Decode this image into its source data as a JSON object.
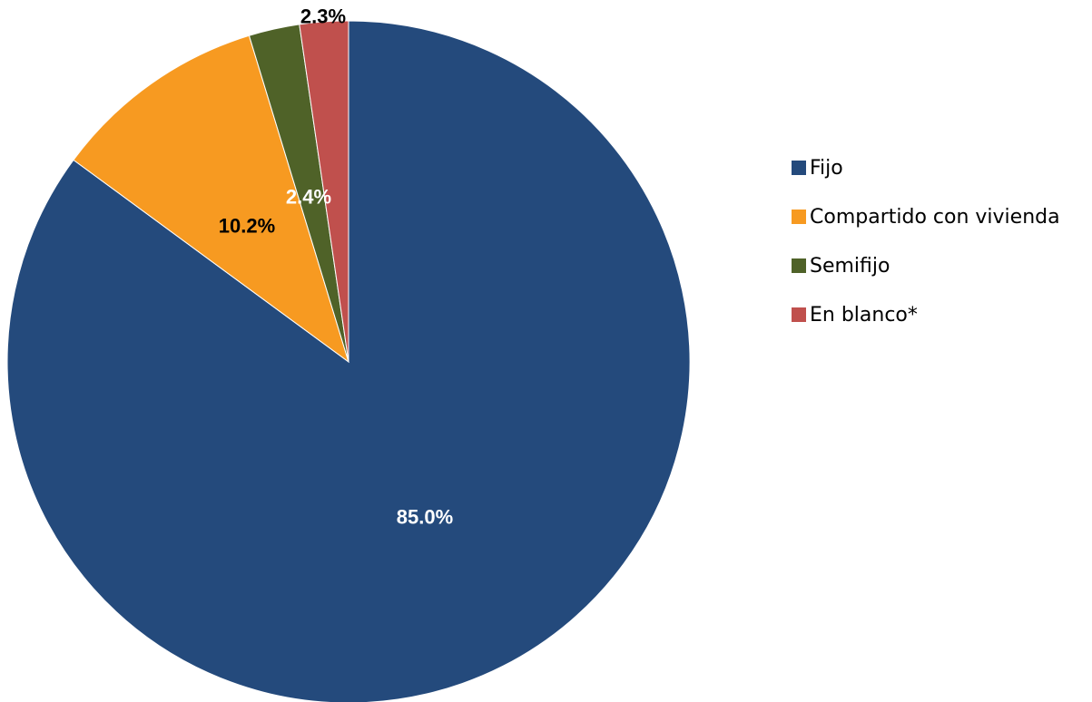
{
  "chart_data": {
    "type": "pie",
    "categories": [
      "Fijo",
      "Compartido con vivienda",
      "Semifijo",
      "En blanco*"
    ],
    "values": [
      85.0,
      10.2,
      2.4,
      2.3
    ],
    "labels": [
      "85.0%",
      "10.2%",
      "2.4%",
      "2.3%"
    ],
    "colors": [
      "#244A7C",
      "#F79A21",
      "#4F6228",
      "#C0504D"
    ],
    "label_colors": [
      "#FFFFFF",
      "#000000",
      "#FFFFFF",
      "#000000"
    ],
    "start_angle_deg": 0,
    "direction": "clockwise",
    "legend_position": "right",
    "title": ""
  },
  "legend": {
    "items": [
      {
        "label": "Fijo",
        "color": "#244A7C"
      },
      {
        "label": "Compartido con vivienda",
        "color": "#F79A21"
      },
      {
        "label": "Semifijo",
        "color": "#4F6228"
      },
      {
        "label": "En blanco*",
        "color": "#C0504D"
      }
    ]
  }
}
